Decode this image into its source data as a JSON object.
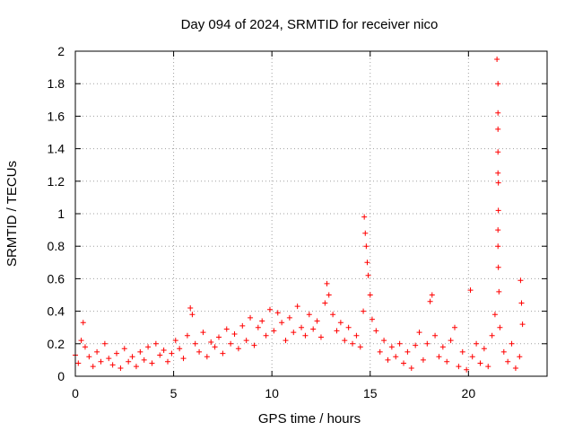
{
  "chart_data": {
    "type": "scatter",
    "title": "Day 094 of 2024, SRMTID for receiver nico",
    "xlabel": "GPS time / hours",
    "ylabel": "SRMTID / TECUs",
    "xlim": [
      0,
      24
    ],
    "ylim": [
      0,
      2
    ],
    "xticks": [
      0,
      5,
      10,
      15,
      20
    ],
    "xtick_labels": [
      "0",
      "5",
      "10",
      "15",
      "20"
    ],
    "yticks": [
      0,
      0.2,
      0.4,
      0.6,
      0.8,
      1.0,
      1.2,
      1.4,
      1.6,
      1.8,
      2.0
    ],
    "ytick_labels": [
      "0",
      "0.2",
      "0.4",
      "0.6",
      "0.8",
      "1",
      "1.2",
      "1.4",
      "1.6",
      "1.8",
      "2"
    ],
    "grid": true,
    "marker": "+",
    "color": "#ff0000",
    "series": [
      {
        "name": "SRMTID",
        "points": [
          [
            0.0,
            0.13
          ],
          [
            0.15,
            0.08
          ],
          [
            0.3,
            0.22
          ],
          [
            0.4,
            0.33
          ],
          [
            0.5,
            0.18
          ],
          [
            0.7,
            0.12
          ],
          [
            0.9,
            0.06
          ],
          [
            1.1,
            0.15
          ],
          [
            1.3,
            0.09
          ],
          [
            1.5,
            0.2
          ],
          [
            1.7,
            0.11
          ],
          [
            1.9,
            0.07
          ],
          [
            2.1,
            0.14
          ],
          [
            2.3,
            0.05
          ],
          [
            2.5,
            0.17
          ],
          [
            2.7,
            0.09
          ],
          [
            2.9,
            0.12
          ],
          [
            3.1,
            0.06
          ],
          [
            3.3,
            0.15
          ],
          [
            3.5,
            0.1
          ],
          [
            3.7,
            0.18
          ],
          [
            3.9,
            0.08
          ],
          [
            4.1,
            0.2
          ],
          [
            4.3,
            0.13
          ],
          [
            4.5,
            0.16
          ],
          [
            4.7,
            0.09
          ],
          [
            4.9,
            0.14
          ],
          [
            5.1,
            0.22
          ],
          [
            5.3,
            0.17
          ],
          [
            5.5,
            0.11
          ],
          [
            5.7,
            0.25
          ],
          [
            5.85,
            0.42
          ],
          [
            5.95,
            0.38
          ],
          [
            6.1,
            0.2
          ],
          [
            6.3,
            0.15
          ],
          [
            6.5,
            0.27
          ],
          [
            6.7,
            0.12
          ],
          [
            6.9,
            0.21
          ],
          [
            7.1,
            0.18
          ],
          [
            7.3,
            0.24
          ],
          [
            7.5,
            0.14
          ],
          [
            7.7,
            0.29
          ],
          [
            7.9,
            0.2
          ],
          [
            8.1,
            0.26
          ],
          [
            8.3,
            0.17
          ],
          [
            8.5,
            0.31
          ],
          [
            8.7,
            0.22
          ],
          [
            8.9,
            0.36
          ],
          [
            9.1,
            0.19
          ],
          [
            9.3,
            0.3
          ],
          [
            9.5,
            0.34
          ],
          [
            9.7,
            0.25
          ],
          [
            9.9,
            0.41
          ],
          [
            10.1,
            0.28
          ],
          [
            10.3,
            0.39
          ],
          [
            10.5,
            0.33
          ],
          [
            10.7,
            0.22
          ],
          [
            10.9,
            0.36
          ],
          [
            11.1,
            0.27
          ],
          [
            11.3,
            0.43
          ],
          [
            11.5,
            0.3
          ],
          [
            11.7,
            0.25
          ],
          [
            11.9,
            0.38
          ],
          [
            12.1,
            0.29
          ],
          [
            12.3,
            0.34
          ],
          [
            12.5,
            0.24
          ],
          [
            12.7,
            0.45
          ],
          [
            12.8,
            0.57
          ],
          [
            12.9,
            0.5
          ],
          [
            13.1,
            0.38
          ],
          [
            13.3,
            0.28
          ],
          [
            13.5,
            0.33
          ],
          [
            13.7,
            0.22
          ],
          [
            13.9,
            0.3
          ],
          [
            14.1,
            0.2
          ],
          [
            14.3,
            0.25
          ],
          [
            14.5,
            0.18
          ],
          [
            14.65,
            0.4
          ],
          [
            14.7,
            0.98
          ],
          [
            14.75,
            0.88
          ],
          [
            14.8,
            0.8
          ],
          [
            14.85,
            0.7
          ],
          [
            14.9,
            0.62
          ],
          [
            15.0,
            0.5
          ],
          [
            15.1,
            0.35
          ],
          [
            15.3,
            0.28
          ],
          [
            15.5,
            0.15
          ],
          [
            15.7,
            0.22
          ],
          [
            15.9,
            0.1
          ],
          [
            16.1,
            0.18
          ],
          [
            16.3,
            0.12
          ],
          [
            16.5,
            0.2
          ],
          [
            16.7,
            0.08
          ],
          [
            16.9,
            0.15
          ],
          [
            17.1,
            0.05
          ],
          [
            17.3,
            0.19
          ],
          [
            17.5,
            0.27
          ],
          [
            17.7,
            0.1
          ],
          [
            17.9,
            0.2
          ],
          [
            18.05,
            0.46
          ],
          [
            18.15,
            0.5
          ],
          [
            18.3,
            0.25
          ],
          [
            18.5,
            0.12
          ],
          [
            18.7,
            0.18
          ],
          [
            18.9,
            0.09
          ],
          [
            19.1,
            0.22
          ],
          [
            19.3,
            0.3
          ],
          [
            19.5,
            0.06
          ],
          [
            19.7,
            0.15
          ],
          [
            19.9,
            0.04
          ],
          [
            20.1,
            0.53
          ],
          [
            20.2,
            0.12
          ],
          [
            20.4,
            0.2
          ],
          [
            20.6,
            0.08
          ],
          [
            20.8,
            0.17
          ],
          [
            21.0,
            0.06
          ],
          [
            21.2,
            0.25
          ],
          [
            21.35,
            0.38
          ],
          [
            21.45,
            1.95
          ],
          [
            21.5,
            1.8
          ],
          [
            21.5,
            1.62
          ],
          [
            21.5,
            1.52
          ],
          [
            21.5,
            1.38
          ],
          [
            21.5,
            1.25
          ],
          [
            21.52,
            1.19
          ],
          [
            21.52,
            1.02
          ],
          [
            21.5,
            0.9
          ],
          [
            21.5,
            0.8
          ],
          [
            21.52,
            0.67
          ],
          [
            21.55,
            0.52
          ],
          [
            21.6,
            0.3
          ],
          [
            21.8,
            0.15
          ],
          [
            22.0,
            0.09
          ],
          [
            22.2,
            0.2
          ],
          [
            22.4,
            0.05
          ],
          [
            22.6,
            0.12
          ],
          [
            22.65,
            0.59
          ],
          [
            22.7,
            0.45
          ],
          [
            22.75,
            0.32
          ]
        ]
      }
    ]
  }
}
